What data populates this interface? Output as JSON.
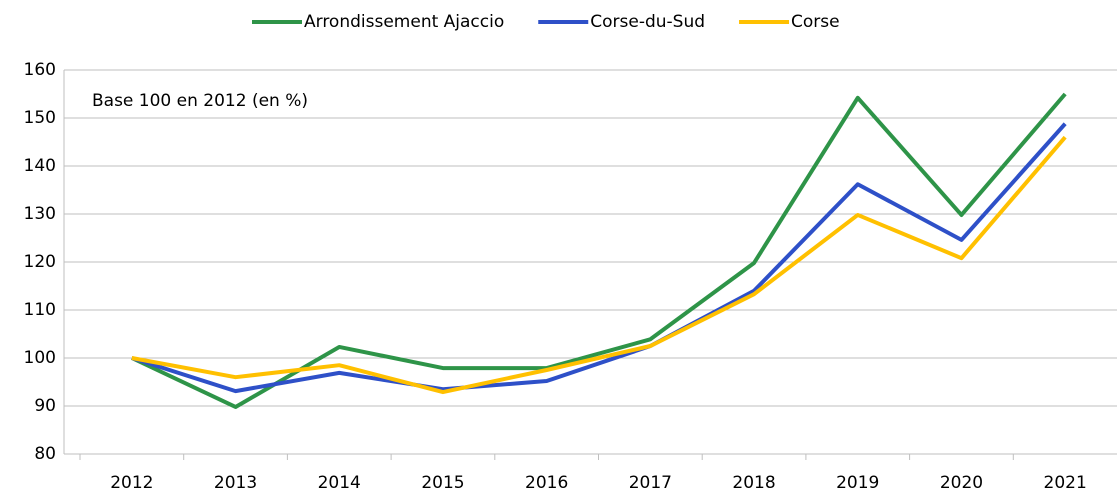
{
  "chart_data": {
    "type": "line",
    "annotation": "Base 100 en 2012 (en %)",
    "categories": [
      "2012",
      "2013",
      "2014",
      "2015",
      "2016",
      "2017",
      "2018",
      "2019",
      "2020",
      "2021"
    ],
    "series": [
      {
        "name": "Arrondissement Ajaccio",
        "color": "#2e9448",
        "values": [
          100,
          89.8,
          102.3,
          97.9,
          97.9,
          103.9,
          119.8,
          154.2,
          129.8,
          155
        ]
      },
      {
        "name": "Corse-du-Sud",
        "color": "#2e50c8",
        "values": [
          100,
          93.1,
          96.9,
          93.5,
          95.2,
          102.5,
          114,
          136.2,
          124.6,
          148.8
        ]
      },
      {
        "name": "Corse",
        "color": "#ffc000",
        "values": [
          100,
          96,
          98.5,
          92.9,
          97.5,
          102.5,
          113.3,
          129.8,
          120.8,
          146
        ]
      }
    ],
    "ylim": [
      80,
      160
    ],
    "yticks": [
      80,
      90,
      100,
      110,
      120,
      130,
      140,
      150,
      160
    ],
    "grid": true
  }
}
